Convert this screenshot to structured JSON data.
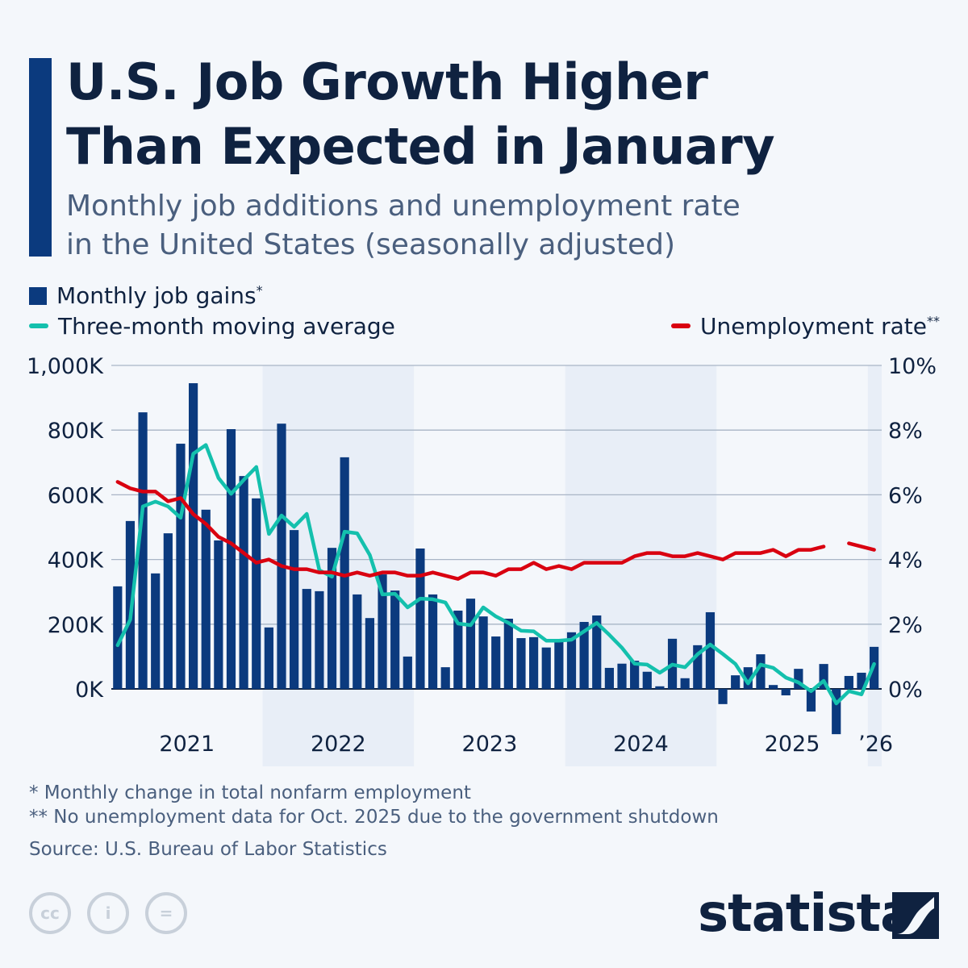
{
  "title": "U.S. Job Growth Higher Than Expected in January",
  "title_lines": [
    "U.S. Job Growth Higher",
    "Than Expected in January"
  ],
  "subtitle_lines": [
    "Monthly job additions and unemployment rate",
    "in the United States (seasonally adjusted)"
  ],
  "legend": {
    "bars": "Monthly job gains",
    "bars_mark": "*",
    "avg": "Three-month moving average",
    "rate": "Unemployment rate",
    "rate_mark": "**"
  },
  "footnotes": [
    "*   Monthly change in total nonfarm employment",
    "** No unemployment data for Oct. 2025 due to the government shutdown"
  ],
  "source": "Source: U.S. Bureau of Labor Statistics",
  "brand": "statista",
  "license_icons": [
    "cc-icon",
    "attribution-icon",
    "no-derivatives-icon"
  ],
  "colors": {
    "bars": "#0b3a7e",
    "avg": "#14c0ad",
    "rate": "#d90010",
    "shade": "#e8eef7"
  },
  "chart_data": {
    "type": "bar+line",
    "x_start": "Jan 2021",
    "x_end": "Jan 2026",
    "frequency": "monthly",
    "year_labels": [
      "2021",
      "2022",
      "2023",
      "2024",
      "2025",
      "’26"
    ],
    "shaded_years": [
      "2022",
      "2024",
      "’26"
    ],
    "left_axis": {
      "ylim": [
        -150,
        1000
      ],
      "ticks": [
        "0K",
        "200K",
        "400K",
        "600K",
        "800K",
        "1,000K"
      ],
      "tick_values": [
        0,
        200,
        400,
        600,
        800,
        1000
      ],
      "unit": "K"
    },
    "right_axis": {
      "ylim": [
        -1.5,
        10
      ],
      "ticks": [
        "0%",
        "2%",
        "4%",
        "6%",
        "8%",
        "10%"
      ],
      "tick_values": [
        0,
        2,
        4,
        6,
        8,
        10
      ],
      "unit": "%"
    },
    "grid": true,
    "series": [
      {
        "name": "Monthly job gains",
        "type": "bar",
        "axis": "left",
        "values": [
          317,
          519,
          855,
          357,
          481,
          758,
          945,
          554,
          459,
          803,
          658,
          589,
          190,
          820,
          491,
          309,
          302,
          436,
          716,
          292,
          219,
          354,
          304,
          100,
          434,
          292,
          67,
          242,
          279,
          224,
          162,
          217,
          157,
          160,
          128,
          154,
          175,
          207,
          227,
          65,
          78,
          87,
          53,
          8,
          155,
          33,
          135,
          237,
          -47,
          42,
          67,
          107,
          12,
          -20,
          62,
          -70,
          77,
          -140,
          40,
          50,
          130
        ]
      },
      {
        "name": "Three-month moving average",
        "type": "line",
        "axis": "left",
        "values": [
          135,
          214,
          564,
          579,
          564,
          529,
          727,
          754,
          652,
          603,
          646,
          686,
          479,
          536,
          501,
          541,
          367,
          347,
          486,
          481,
          414,
          292,
          294,
          252,
          279,
          277,
          267,
          202,
          197,
          252,
          224,
          204,
          180,
          178,
          149,
          149,
          152,
          178,
          204,
          167,
          127,
          78,
          75,
          50,
          75,
          67,
          107,
          137,
          108,
          77,
          17,
          75,
          65,
          35,
          20,
          -7,
          25,
          -45,
          -7,
          -17,
          77
        ]
      },
      {
        "name": "Unemployment rate",
        "type": "line",
        "axis": "right",
        "values": [
          6.4,
          6.2,
          6.1,
          6.1,
          5.8,
          5.9,
          5.4,
          5.1,
          4.7,
          4.5,
          4.2,
          3.9,
          4.0,
          3.8,
          3.7,
          3.7,
          3.6,
          3.6,
          3.5,
          3.6,
          3.5,
          3.6,
          3.6,
          3.5,
          3.5,
          3.6,
          3.5,
          3.4,
          3.6,
          3.6,
          3.5,
          3.7,
          3.7,
          3.9,
          3.7,
          3.8,
          3.7,
          3.9,
          3.9,
          3.9,
          3.9,
          4.1,
          4.2,
          4.2,
          4.1,
          4.1,
          4.2,
          4.1,
          4.0,
          4.2,
          4.2,
          4.2,
          4.3,
          4.1,
          4.3,
          4.3,
          4.4,
          null,
          4.5,
          4.4,
          4.3
        ]
      }
    ]
  }
}
